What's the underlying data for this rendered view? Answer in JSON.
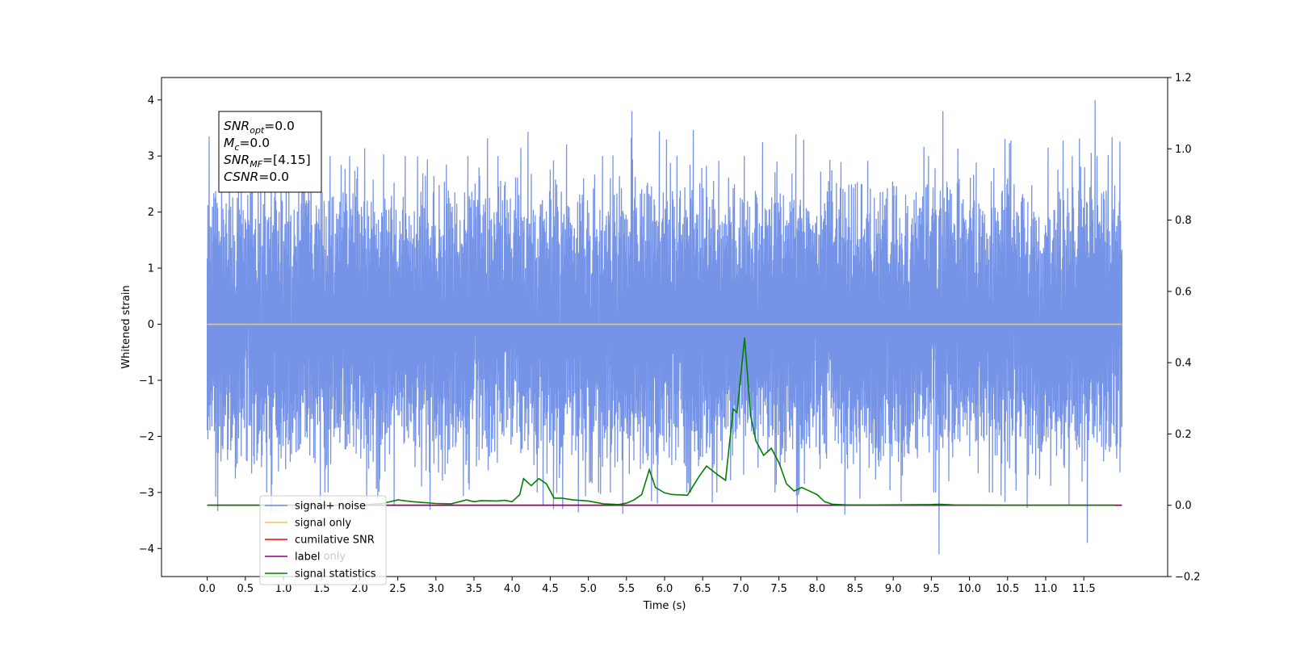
{
  "chart_data": {
    "type": "line",
    "xlabel": "Time (s)",
    "ylabel": "Whitened strain",
    "xlim": [
      -0.6,
      12.6
    ],
    "ylim": [
      -4.5,
      4.4
    ],
    "y2lim": [
      -0.2,
      1.2
    ],
    "x_ticks": [
      "0.0",
      "0.5",
      "1.0",
      "1.5",
      "2.0",
      "2.5",
      "3.0",
      "3.5",
      "4.0",
      "4.5",
      "5.0",
      "5.5",
      "6.0",
      "6.5",
      "7.0",
      "7.5",
      "8.0",
      "8.5",
      "9.0",
      "9.5",
      "10.0",
      "10.5",
      "11.0",
      "11.5"
    ],
    "x_tick_values": [
      0.0,
      0.5,
      1.0,
      1.5,
      2.0,
      2.5,
      3.0,
      3.5,
      4.0,
      4.5,
      5.0,
      5.5,
      6.0,
      6.5,
      7.0,
      7.5,
      8.0,
      8.5,
      9.0,
      9.5,
      10.0,
      10.5,
      11.0,
      11.5
    ],
    "y_ticks": [
      "−4",
      "−3",
      "−2",
      "−1",
      "0",
      "1",
      "2",
      "3",
      "4"
    ],
    "y_tick_values": [
      -4,
      -3,
      -2,
      -1,
      0,
      1,
      2,
      3,
      4
    ],
    "y2_ticks": [
      "−0.2",
      "0.0",
      "0.2",
      "0.4",
      "0.6",
      "0.8",
      "1.0",
      "1.2"
    ],
    "y2_tick_values": [
      -0.2,
      0.0,
      0.2,
      0.4,
      0.6,
      0.8,
      1.0,
      1.2
    ],
    "grid": false,
    "legend_placement": "lower-left",
    "series": [
      {
        "name": "signal+ noise",
        "color": "#6f8ee6",
        "axis": "left",
        "kind": "noise",
        "x_range": [
          0.0,
          12.0
        ],
        "amplitude_envelope": [
          -4.1,
          4.0
        ],
        "notable_peaks": [
          [
            0.03,
            3.35
          ],
          [
            5.57,
            3.8
          ],
          [
            9.65,
            3.8
          ],
          [
            11.65,
            4.0
          ],
          [
            9.6,
            -4.1
          ],
          [
            11.55,
            -3.9
          ]
        ]
      },
      {
        "name": "signal only",
        "color": "#ffbf50",
        "axis": "left",
        "x": [
          0.0,
          12.0
        ],
        "y": [
          0.0,
          0.0
        ]
      },
      {
        "name": "cumilative SNR",
        "color": "#ff0000",
        "axis": "right",
        "x": [
          0.0,
          12.0
        ],
        "y": [
          0.0,
          0.0
        ]
      },
      {
        "name": "label",
        "color": "#800080",
        "axis": "right",
        "x": [
          0.0,
          12.0
        ],
        "y": [
          0.0,
          0.0
        ]
      },
      {
        "name": "signal statistics",
        "color": "#008000",
        "axis": "right",
        "x": [
          0.0,
          0.5,
          1.0,
          1.5,
          2.0,
          2.3,
          2.5,
          2.7,
          3.0,
          3.2,
          3.4,
          3.5,
          3.6,
          3.8,
          3.9,
          4.0,
          4.1,
          4.15,
          4.25,
          4.35,
          4.45,
          4.55,
          4.65,
          4.8,
          5.0,
          5.2,
          5.4,
          5.5,
          5.6,
          5.7,
          5.8,
          5.88,
          6.0,
          6.1,
          6.3,
          6.45,
          6.55,
          6.7,
          6.8,
          6.9,
          6.95,
          7.05,
          7.13,
          7.2,
          7.3,
          7.4,
          7.5,
          7.6,
          7.7,
          7.8,
          7.9,
          8.0,
          8.1,
          8.2,
          8.4,
          8.8,
          9.5,
          9.6,
          9.8,
          10.5,
          11.0,
          11.9
        ],
        "y": [
          0.0,
          0.0,
          0.0,
          0.0,
          0.0,
          0.005,
          0.015,
          0.01,
          0.005,
          0.004,
          0.015,
          0.01,
          0.013,
          0.012,
          0.014,
          0.01,
          0.03,
          0.075,
          0.055,
          0.075,
          0.06,
          0.02,
          0.02,
          0.015,
          0.012,
          0.004,
          0.002,
          0.006,
          0.015,
          0.03,
          0.1,
          0.05,
          0.035,
          0.03,
          0.028,
          0.08,
          0.11,
          0.085,
          0.07,
          0.27,
          0.26,
          0.47,
          0.25,
          0.18,
          0.14,
          0.16,
          0.12,
          0.06,
          0.04,
          0.05,
          0.04,
          0.03,
          0.01,
          0.003,
          0.001,
          0.001,
          0.002,
          0.003,
          0.001,
          0.0,
          0.0,
          0.0
        ]
      }
    ],
    "legend": [
      {
        "label": "signal+ noise",
        "color": "#6f8ee6"
      },
      {
        "label": "signal only",
        "color": "#ffbf50"
      },
      {
        "label": "cumilative SNR",
        "color": "#ff0000"
      },
      {
        "label": "label",
        "color": "#800080"
      },
      {
        "label": "signal statistics",
        "color": "#008000"
      }
    ],
    "annotation": {
      "lines": [
        {
          "base": "SNR",
          "sub": "opt",
          "value": "=0.0"
        },
        {
          "base": "M",
          "sub": "c",
          "value": "=0.0"
        },
        {
          "base": "SNR",
          "sub": "MF",
          "value": "=[4.15]"
        },
        {
          "base": "CSNR",
          "sub": "",
          "value": "=0.0"
        }
      ]
    },
    "hidden_legend_ghost_text": "label only"
  }
}
